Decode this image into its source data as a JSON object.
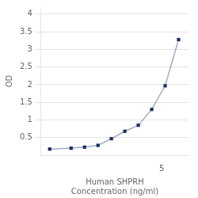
{
  "chart_data": {
    "type": "line",
    "x": [
      0.0156,
      0.047,
      0.094,
      0.188,
      0.375,
      0.75,
      1.5,
      3,
      6,
      12
    ],
    "values": [
      0.175,
      0.2,
      0.23,
      0.28,
      0.47,
      0.68,
      0.85,
      1.3,
      1.97,
      3.28
    ],
    "xlabel": "Human SHPRH\nConcentration (ng/ml)",
    "ylabel": "OD",
    "xlim": [
      0.01,
      20
    ],
    "ylim": [
      0,
      4.2
    ],
    "xticks": [
      5
    ],
    "yticks": [
      0.5,
      1,
      1.5,
      2,
      2.5,
      3,
      3.5,
      4
    ],
    "log": "x",
    "grid": "y",
    "color": "#1a3060",
    "marker": "square",
    "line_style": "solid"
  }
}
